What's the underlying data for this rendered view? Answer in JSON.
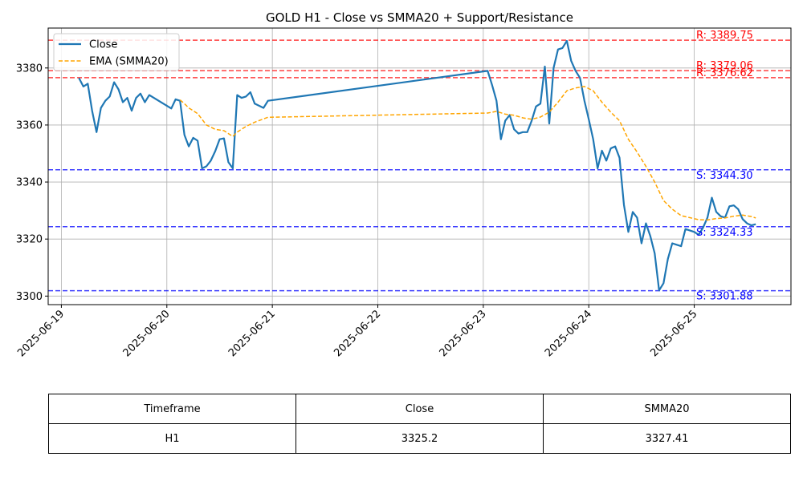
{
  "chart_data": {
    "type": "line",
    "title": "GOLD H1 - Close vs SMMA20 + Support/Resistance",
    "xlabel": "",
    "ylabel": "",
    "xlim": [
      "2025-06-18T21:00",
      "2025-06-25T22:00"
    ],
    "ylim": [
      3297,
      3394
    ],
    "x_ticks": [
      "2025-06-19",
      "2025-06-20",
      "2025-06-21",
      "2025-06-22",
      "2025-06-23",
      "2025-06-24",
      "2025-06-25"
    ],
    "y_ticks": [
      3300,
      3320,
      3340,
      3360,
      3380
    ],
    "grid": true,
    "legend_position": "top-left",
    "series": [
      {
        "name": "Close",
        "color": "#1f77b4",
        "style": "solid",
        "points": [
          [
            "2025-06-19T04:00",
            3376.5
          ],
          [
            "2025-06-19T05:00",
            3373.5
          ],
          [
            "2025-06-19T06:00",
            3374.5
          ],
          [
            "2025-06-19T07:00",
            3365.0
          ],
          [
            "2025-06-19T08:00",
            3357.5
          ],
          [
            "2025-06-19T09:00",
            3366.0
          ],
          [
            "2025-06-19T10:00",
            3368.5
          ],
          [
            "2025-06-19T11:00",
            3370.0
          ],
          [
            "2025-06-19T12:00",
            3375.0
          ],
          [
            "2025-06-19T13:00",
            3372.5
          ],
          [
            "2025-06-19T14:00",
            3368.0
          ],
          [
            "2025-06-19T15:00",
            3369.5
          ],
          [
            "2025-06-19T16:00",
            3365.0
          ],
          [
            "2025-06-19T17:00",
            3369.5
          ],
          [
            "2025-06-19T18:00",
            3371.0
          ],
          [
            "2025-06-19T19:00",
            3368.0
          ],
          [
            "2025-06-19T20:00",
            3370.5
          ],
          [
            "2025-06-20T01:00",
            3365.8
          ],
          [
            "2025-06-20T02:00",
            3369.0
          ],
          [
            "2025-06-20T03:00",
            3368.5
          ],
          [
            "2025-06-20T04:00",
            3356.5
          ],
          [
            "2025-06-20T05:00",
            3352.5
          ],
          [
            "2025-06-20T06:00",
            3355.5
          ],
          [
            "2025-06-20T07:00",
            3354.5
          ],
          [
            "2025-06-20T08:00",
            3344.8
          ],
          [
            "2025-06-20T09:00",
            3345.5
          ],
          [
            "2025-06-20T10:00",
            3347.5
          ],
          [
            "2025-06-20T11:00",
            3350.8
          ],
          [
            "2025-06-20T12:00",
            3355.0
          ],
          [
            "2025-06-20T13:00",
            3355.3
          ],
          [
            "2025-06-20T14:00",
            3347.0
          ],
          [
            "2025-06-20T15:00",
            3344.8
          ],
          [
            "2025-06-20T16:00",
            3370.5
          ],
          [
            "2025-06-20T17:00",
            3369.5
          ],
          [
            "2025-06-20T18:00",
            3370.0
          ],
          [
            "2025-06-20T19:00",
            3371.5
          ],
          [
            "2025-06-20T20:00",
            3367.5
          ],
          [
            "2025-06-20T22:00",
            3366.0
          ],
          [
            "2025-06-20T23:00",
            3368.5
          ],
          [
            "2025-06-23T01:00",
            3379.0
          ],
          [
            "2025-06-23T02:00",
            3374.0
          ],
          [
            "2025-06-23T03:00",
            3368.5
          ],
          [
            "2025-06-23T04:00",
            3355.0
          ],
          [
            "2025-06-23T05:00",
            3361.5
          ],
          [
            "2025-06-23T06:00",
            3363.5
          ],
          [
            "2025-06-23T07:00",
            3358.5
          ],
          [
            "2025-06-23T08:00",
            3357.0
          ],
          [
            "2025-06-23T09:00",
            3357.5
          ],
          [
            "2025-06-23T10:00",
            3357.5
          ],
          [
            "2025-06-23T11:00",
            3361.5
          ],
          [
            "2025-06-23T12:00",
            3366.5
          ],
          [
            "2025-06-23T13:00",
            3367.5
          ],
          [
            "2025-06-23T14:00",
            3380.5
          ],
          [
            "2025-06-23T15:00",
            3360.5
          ],
          [
            "2025-06-23T16:00",
            3380.0
          ],
          [
            "2025-06-23T17:00",
            3386.5
          ],
          [
            "2025-06-23T18:00",
            3387.0
          ],
          [
            "2025-06-23T19:00",
            3389.5
          ],
          [
            "2025-06-23T20:00",
            3382.5
          ],
          [
            "2025-06-23T21:00",
            3379.0
          ],
          [
            "2025-06-23T22:00",
            3376.5
          ],
          [
            "2025-06-23T23:00",
            3368.5
          ],
          [
            "2025-06-24T00:00",
            3362.0
          ],
          [
            "2025-06-24T01:00",
            3355.0
          ],
          [
            "2025-06-24T02:00",
            3344.8
          ],
          [
            "2025-06-24T03:00",
            3351.0
          ],
          [
            "2025-06-24T04:00",
            3347.5
          ],
          [
            "2025-06-24T05:00",
            3351.8
          ],
          [
            "2025-06-24T06:00",
            3352.5
          ],
          [
            "2025-06-24T07:00",
            3348.5
          ],
          [
            "2025-06-24T08:00",
            3332.0
          ],
          [
            "2025-06-24T09:00",
            3322.5
          ],
          [
            "2025-06-24T10:00",
            3329.5
          ],
          [
            "2025-06-24T11:00",
            3327.5
          ],
          [
            "2025-06-24T12:00",
            3318.5
          ],
          [
            "2025-06-24T13:00",
            3325.5
          ],
          [
            "2025-06-24T14:00",
            3321.0
          ],
          [
            "2025-06-24T15:00",
            3315.0
          ],
          [
            "2025-06-24T16:00",
            3302.0
          ],
          [
            "2025-06-24T17:00",
            3304.5
          ],
          [
            "2025-06-24T18:00",
            3313.0
          ],
          [
            "2025-06-24T19:00",
            3318.5
          ],
          [
            "2025-06-24T20:00",
            3318.0
          ],
          [
            "2025-06-24T21:00",
            3317.5
          ],
          [
            "2025-06-24T22:00",
            3323.5
          ],
          [
            "2025-06-25T00:00",
            3322.5
          ],
          [
            "2025-06-25T01:00",
            3321.5
          ],
          [
            "2025-06-25T02:00",
            3324.0
          ],
          [
            "2025-06-25T03:00",
            3327.5
          ],
          [
            "2025-06-25T04:00",
            3334.5
          ],
          [
            "2025-06-25T05:00",
            3329.5
          ],
          [
            "2025-06-25T06:00",
            3328.0
          ],
          [
            "2025-06-25T07:00",
            3327.5
          ],
          [
            "2025-06-25T08:00",
            3331.5
          ],
          [
            "2025-06-25T09:00",
            3331.8
          ],
          [
            "2025-06-25T10:00",
            3330.5
          ],
          [
            "2025-06-25T11:00",
            3327.0
          ],
          [
            "2025-06-25T12:00",
            3325.5
          ],
          [
            "2025-06-25T13:00",
            3324.8
          ],
          [
            "2025-06-25T14:00",
            3325.2
          ]
        ]
      },
      {
        "name": "EMA (SMMA20)",
        "color": "#ffa500",
        "style": "dashed",
        "points": [
          [
            "2025-06-20T03:00",
            3368.8
          ],
          [
            "2025-06-20T04:00",
            3367.5
          ],
          [
            "2025-06-20T05:00",
            3366.0
          ],
          [
            "2025-06-20T07:00",
            3364.0
          ],
          [
            "2025-06-20T08:00",
            3362.0
          ],
          [
            "2025-06-20T09:00",
            3360.0
          ],
          [
            "2025-06-20T11:00",
            3358.5
          ],
          [
            "2025-06-20T13:00",
            3358.0
          ],
          [
            "2025-06-20T15:00",
            3356.0
          ],
          [
            "2025-06-20T16:00",
            3357.5
          ],
          [
            "2025-06-20T18:00",
            3359.5
          ],
          [
            "2025-06-20T20:00",
            3361.0
          ],
          [
            "2025-06-20T23:00",
            3362.7
          ],
          [
            "2025-06-23T01:00",
            3364.2
          ],
          [
            "2025-06-23T03:00",
            3364.8
          ],
          [
            "2025-06-23T05:00",
            3363.8
          ],
          [
            "2025-06-23T07:00",
            3363.4
          ],
          [
            "2025-06-23T09:00",
            3362.5
          ],
          [
            "2025-06-23T11:00",
            3362.0
          ],
          [
            "2025-06-23T13:00",
            3362.8
          ],
          [
            "2025-06-23T15:00",
            3364.5
          ],
          [
            "2025-06-23T17:00",
            3368.0
          ],
          [
            "2025-06-23T19:00",
            3372.0
          ],
          [
            "2025-06-23T21:00",
            3373.0
          ],
          [
            "2025-06-23T23:00",
            3373.5
          ],
          [
            "2025-06-24T01:00",
            3372.0
          ],
          [
            "2025-06-24T03:00",
            3368.0
          ],
          [
            "2025-06-24T05:00",
            3364.5
          ],
          [
            "2025-06-24T07:00",
            3361.5
          ],
          [
            "2025-06-24T09:00",
            3355.0
          ],
          [
            "2025-06-24T11:00",
            3350.5
          ],
          [
            "2025-06-24T13:00",
            3345.5
          ],
          [
            "2025-06-24T15:00",
            3340.0
          ],
          [
            "2025-06-24T17:00",
            3333.5
          ],
          [
            "2025-06-24T19:00",
            3330.5
          ],
          [
            "2025-06-24T21:00",
            3328.2
          ],
          [
            "2025-06-24T23:00",
            3327.5
          ],
          [
            "2025-06-25T01:00",
            3326.8
          ],
          [
            "2025-06-25T03:00",
            3326.7
          ],
          [
            "2025-06-25T05:00",
            3327.2
          ],
          [
            "2025-06-25T07:00",
            3327.4
          ],
          [
            "2025-06-25T09:00",
            3328.0
          ],
          [
            "2025-06-25T11:00",
            3328.4
          ],
          [
            "2025-06-25T13:00",
            3327.9
          ],
          [
            "2025-06-25T14:00",
            3327.4
          ]
        ]
      }
    ],
    "resistance_levels": [
      {
        "label": "R: 3389.75",
        "value": 3389.75,
        "color": "#ff0000"
      },
      {
        "label": "R: 3379.06",
        "value": 3379.06,
        "color": "#ff0000"
      },
      {
        "label": "R: 3376.62",
        "value": 3376.62,
        "color": "#ff0000"
      }
    ],
    "support_levels": [
      {
        "label": "S: 3344.30",
        "value": 3344.3,
        "color": "#0000ff"
      },
      {
        "label": "S: 3324.33",
        "value": 3324.33,
        "color": "#0000ff"
      },
      {
        "label": "S: 3301.88",
        "value": 3301.88,
        "color": "#0000ff"
      }
    ]
  },
  "table": {
    "headers": [
      "Timeframe",
      "Close",
      "SMMA20"
    ],
    "rows": [
      [
        "H1",
        "3325.2",
        "3327.41"
      ]
    ]
  }
}
